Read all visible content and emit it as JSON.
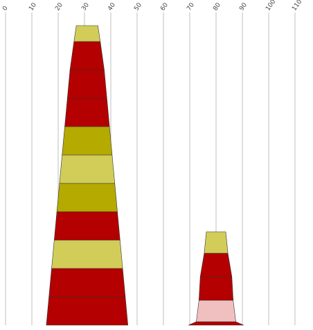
{
  "chart_data": {
    "type": "stacked-funnel",
    "x_ticks": [
      "0",
      "10",
      "20",
      "30",
      "40",
      "50",
      "60",
      "70",
      "80",
      "90",
      "100",
      "110"
    ],
    "xlim": [
      0,
      110
    ],
    "grid": "vertical",
    "stacks": [
      {
        "center": 31,
        "segments": [
          {
            "width": 31,
            "color": "#b40000"
          },
          {
            "width": 29,
            "color": "#b40000"
          },
          {
            "width": 27,
            "color": "#d2cd58"
          },
          {
            "width": 25,
            "color": "#b40000"
          },
          {
            "width": 23,
            "color": "#b4aa00"
          },
          {
            "width": 21,
            "color": "#d2cd58"
          },
          {
            "width": 19,
            "color": "#b4aa00"
          },
          {
            "width": 17,
            "color": "#b40000"
          },
          {
            "width": 15,
            "color": "#b40000"
          },
          {
            "width": 13,
            "color": "#b40000"
          },
          {
            "width": 10,
            "color": "#d2cd58"
          }
        ]
      },
      {
        "center": 80,
        "segments": [
          {
            "width": 21,
            "color": "#b40000"
          },
          {
            "width": 15,
            "color": "#f0c0c0"
          },
          {
            "width": 13,
            "color": "#b40000"
          },
          {
            "width": 12,
            "color": "#b40000"
          },
          {
            "width": 9,
            "color": "#d2cd58"
          }
        ]
      }
    ]
  }
}
